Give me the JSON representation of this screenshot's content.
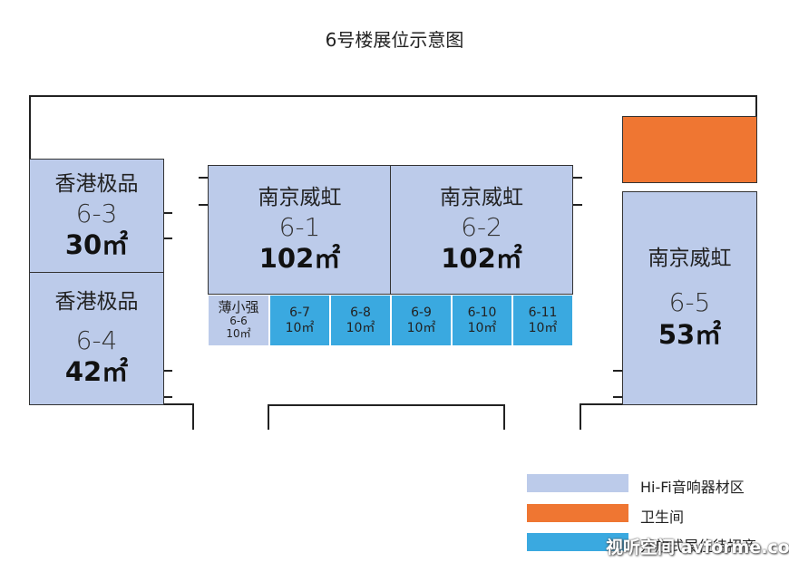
{
  "title": "6号楼展位示意图",
  "booths": {
    "b6_3": {
      "name": "香港极品",
      "code": "6-3",
      "area": "30㎡"
    },
    "b6_4": {
      "name": "香港极品",
      "code": "6-4",
      "area": "42㎡"
    },
    "b6_1": {
      "name": "南京威虹",
      "code": "6-1",
      "area": "102㎡"
    },
    "b6_2": {
      "name": "南京威虹",
      "code": "6-2",
      "area": "102㎡"
    },
    "b6_5": {
      "name": "南京威虹",
      "code": "6-5",
      "area": "53㎡"
    },
    "b6_6": {
      "name": "薄小强",
      "code": "6-6",
      "area": "10㎡"
    },
    "b6_7": {
      "code": "6-7",
      "area": "10㎡"
    },
    "b6_8": {
      "code": "6-8",
      "area": "10㎡"
    },
    "b6_9": {
      "code": "6-9",
      "area": "10㎡"
    },
    "b6_10": {
      "code": "6-10",
      "area": "10㎡"
    },
    "b6_11": {
      "code": "6-11",
      "area": "10㎡"
    }
  },
  "legend": [
    {
      "label": "Hi-Fi音响器材区",
      "color": "#bccbea"
    },
    {
      "label": "卫生间",
      "color": "#ef7632"
    },
    {
      "label": "开放式展位待招商",
      "color": "#3aa9e0"
    }
  ],
  "watermark": "视听空间 avforme.com",
  "colors": {
    "hifi": "#bccbea",
    "restroom": "#ef7632",
    "open": "#3aa9e0"
  }
}
